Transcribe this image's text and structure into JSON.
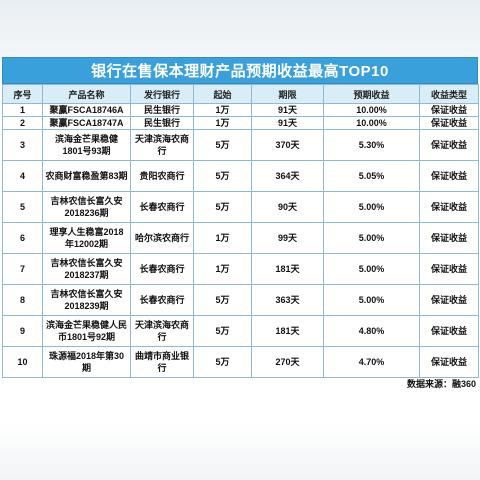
{
  "title": "银行在售保本理财产品预期收益最高TOP10",
  "headers": [
    "序号",
    "产品名称",
    "发行银行",
    "起始",
    "期限",
    "预期收益",
    "收益类型"
  ],
  "rows": [
    {
      "no": "1",
      "name": "聚赢FSCA18746A",
      "bank": "民生银行",
      "start": "1万",
      "term": "91天",
      "yield": "10.00%",
      "type": "保证收益"
    },
    {
      "no": "2",
      "name": "聚赢FSCA18747A",
      "bank": "民生银行",
      "start": "1万",
      "term": "91天",
      "yield": "10.00%",
      "type": "保证收益"
    },
    {
      "no": "3",
      "name": "滨海金芒果稳健1801号93期",
      "bank": "天津滨海农商行",
      "start": "5万",
      "term": "370天",
      "yield": "5.30%",
      "type": "保证收益"
    },
    {
      "no": "4",
      "name": "农商财富稳盈第83期",
      "bank": "贵阳农商行",
      "start": "5万",
      "term": "364天",
      "yield": "5.05%",
      "type": "保证收益"
    },
    {
      "no": "5",
      "name": "吉林农信长富久安2018236期",
      "bank": "长春农商行",
      "start": "5万",
      "term": "90天",
      "yield": "5.00%",
      "type": "保证收益"
    },
    {
      "no": "6",
      "name": "理享人生稳富2018年12002期",
      "bank": "哈尔滨农商行",
      "start": "1万",
      "term": "99天",
      "yield": "5.00%",
      "type": "保证收益"
    },
    {
      "no": "7",
      "name": "吉林农信长富久安2018237期",
      "bank": "长春农商行",
      "start": "1万",
      "term": "181天",
      "yield": "5.00%",
      "type": "保证收益"
    },
    {
      "no": "8",
      "name": "吉林农信长富久安2018239期",
      "bank": "长春农商行",
      "start": "5万",
      "term": "363天",
      "yield": "5.00%",
      "type": "保证收益"
    },
    {
      "no": "9",
      "name": "滨海金芒果稳健人民币1801号92期",
      "bank": "天津滨海农商行",
      "start": "5万",
      "term": "181天",
      "yield": "4.80%",
      "type": "保证收益"
    },
    {
      "no": "10",
      "name": "珠源福2018年第30期",
      "bank": "曲靖市商业银行",
      "start": "5万",
      "term": "270天",
      "yield": "4.70%",
      "type": "保证收益"
    }
  ],
  "footer": "数据来源：融360"
}
